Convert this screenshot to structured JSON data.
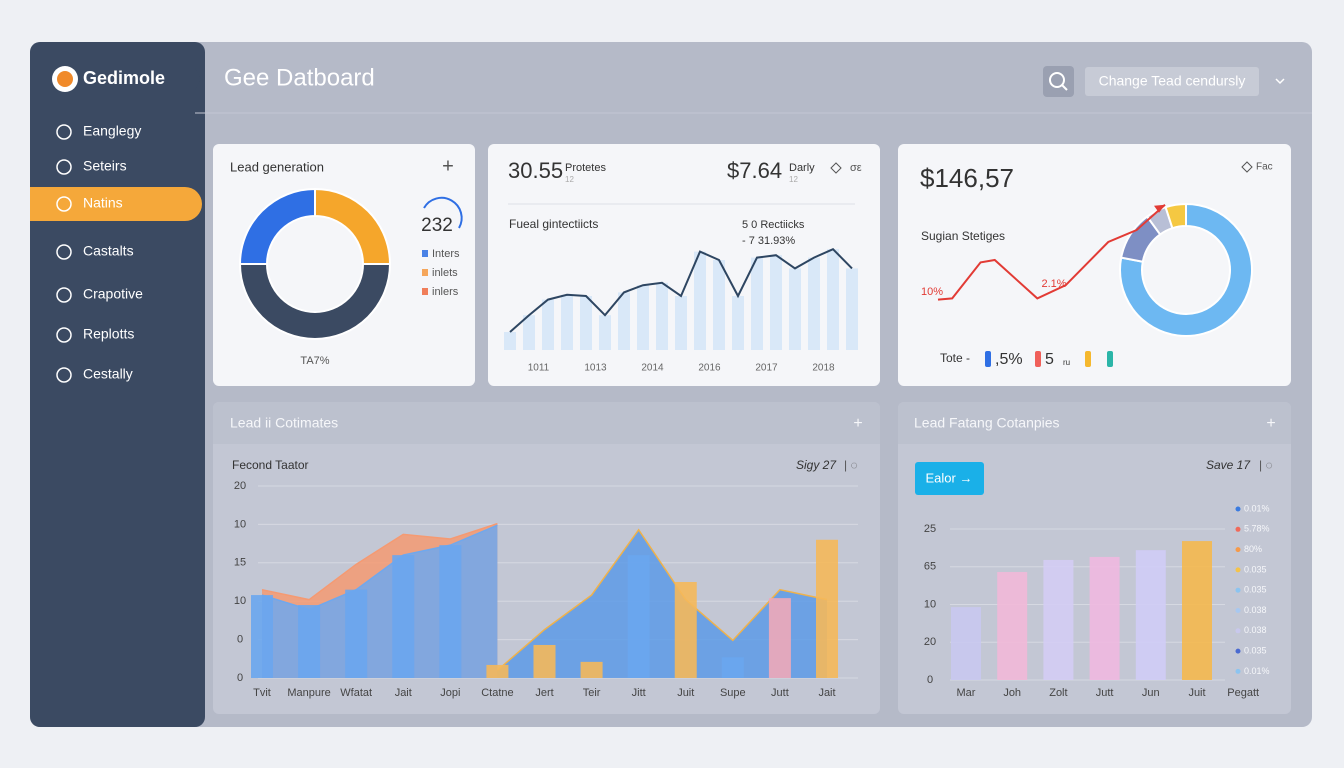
{
  "sidebar": {
    "brand": "Gedimole",
    "nav": [
      "Eanglegy",
      "Seteirs",
      "Natins",
      "Castalts",
      "Crapotive",
      "Replotts",
      "Cestally"
    ],
    "active": 2
  },
  "header": {
    "title": "Gee Datboard",
    "button": "Change Tead cendursly"
  },
  "chart_data": [
    {
      "type": "pie",
      "title": "Lead generation",
      "action": "+",
      "values": [
        25,
        25,
        50
      ],
      "colors": [
        "#2f6fe4",
        "#f5a62b",
        "#3b4a62"
      ],
      "center_label": 232,
      "legend": [
        {
          "name": "Inters",
          "color": "#4a82e6"
        },
        {
          "name": "inlets",
          "color": "#f5a65b"
        },
        {
          "name": "inlers",
          "color": "#f07e5a"
        }
      ],
      "footer": "TA7%"
    },
    {
      "type": "line",
      "kpis": [
        {
          "value": "30.55",
          "label": "Protetes",
          "note": "12"
        },
        {
          "value": "$7.64",
          "label": "Darly",
          "note": "12"
        }
      ],
      "badge": "σε",
      "subtitle": "Fueal gintectiicts",
      "annotations": [
        "5 0 Rectiicks",
        "- 7 31.93%"
      ],
      "x": [
        0,
        1,
        2,
        3,
        4,
        5,
        6,
        7,
        8,
        9,
        10,
        11,
        12,
        13,
        14,
        15,
        16,
        17,
        18
      ],
      "values": [
        15,
        29,
        42,
        46,
        45,
        29,
        48,
        54,
        56,
        45,
        82,
        75,
        45,
        77,
        79,
        68,
        77,
        84,
        68
      ],
      "color": "#2e4662",
      "bar_color": "#d9e8f8",
      "xlim": [
        0,
        18
      ],
      "xticks": [
        {
          "value": 1.5,
          "label": "1011"
        },
        {
          "value": 4.5,
          "label": "1013"
        },
        {
          "value": 7.5,
          "label": "2014"
        },
        {
          "value": 10.5,
          "label": "2016"
        },
        {
          "value": 13.5,
          "label": "2017"
        },
        {
          "value": 16.5,
          "label": "2018"
        }
      ],
      "ylim": [
        0,
        100
      ]
    },
    {
      "type": "trend-donut",
      "title": "$146,57",
      "badge": "Fac",
      "subtitle": "Sugian Stetiges",
      "x": [
        0,
        1,
        3,
        4,
        7,
        9,
        12,
        14,
        16
      ],
      "values": [
        17,
        18,
        48,
        50,
        18,
        29,
        65,
        75,
        96
      ],
      "xlim": [
        0,
        16
      ],
      "ylim": [
        0,
        100
      ],
      "color": "#e23b35",
      "annotations": [
        "10%",
        "2.1%"
      ],
      "donut": {
        "values": [
          78,
          12,
          5,
          5
        ],
        "colors": [
          "#6db8f2",
          "#7e8fc4",
          "#b8bfd6",
          "#f5c842"
        ]
      },
      "legend": {
        "label": "Tote -",
        "items": [
          {
            "color": "#2f6fe4",
            "text": ",5%"
          },
          {
            "color": "#f0605a",
            "text": "5",
            "unit": "ru"
          },
          {
            "color": "#f5b82e"
          },
          {
            "color": "#2bb5a8"
          }
        ]
      }
    },
    {
      "type": "combo",
      "title": "Lead ii Cotimates",
      "action": "+",
      "subtitle": "Fecond Taator",
      "meta": "Sigy 27",
      "categories": [
        "Tvit",
        "Manpure",
        "Wfatat",
        "Jait",
        "Jopi",
        "Ctatne",
        "Jert",
        "Teir",
        "Jitt",
        "Juit",
        "Supe",
        "Jutt",
        "Jait"
      ],
      "ylim": [
        0,
        25
      ],
      "yticks": [
        {
          "value": 25,
          "label": "20"
        },
        {
          "value": 20,
          "label": "10"
        },
        15,
        10,
        {
          "value": 5,
          "label": "0"
        },
        0
      ],
      "grid": true,
      "areas": [
        {
          "color": "#f59a72",
          "values": [
            11.5,
            10.2,
            14.8,
            18.7,
            18.1,
            20.1,
            null,
            null,
            null,
            null,
            null,
            null,
            null
          ]
        },
        {
          "color": "#6fa8ee",
          "values": [
            10.8,
            8.9,
            11.5,
            16,
            17.3,
            19.9,
            null,
            null,
            null,
            null,
            null,
            null,
            null
          ]
        },
        {
          "color": "#5d9ae6",
          "line_color": "#f0b24a",
          "values": [
            null,
            null,
            null,
            null,
            null,
            1,
            6.3,
            10.8,
            19.3,
            10.2,
            4.9,
            11.5,
            10.2
          ]
        }
      ],
      "bars": {
        "values": [
          10.8,
          9.5,
          11.5,
          16,
          17.3,
          1.7,
          4.3,
          2.1,
          16,
          12.5,
          2.7,
          10.4,
          18
        ],
        "colors": [
          "#6aa6ee",
          "#6aa6ee",
          "#6aa6ee",
          "#6aa6ee",
          "#6aa6ee",
          "#f5b85a",
          "#f5b85a",
          "#f5b85a",
          "#6aa6ee",
          "#f5b85a",
          "#6aa6ee",
          "#f0a8b8",
          "#f5b85a"
        ]
      }
    },
    {
      "type": "bar",
      "title": "Lead Fatang Cotanpies",
      "action": "+",
      "button": "Ealor →",
      "meta": "Save 17",
      "categories": [
        "Mar",
        "Joh",
        "Zolt",
        "Jutt",
        "Jun",
        "Juit",
        "Pegatt"
      ],
      "values": [
        19.3,
        28.6,
        31.8,
        32.6,
        34.4,
        36.8,
        null
      ],
      "colors": [
        "#c9c8f0",
        "#f2b8d8",
        "#d4ccf4",
        "#efb8e0",
        "#d0ccf6",
        "#f5b84e",
        null
      ],
      "ylim": [
        0,
        40
      ],
      "yticks": [
        {
          "value": 40,
          "label": "25"
        },
        {
          "value": 30,
          "label": "65"
        },
        {
          "value": 20,
          "label": "10"
        },
        {
          "value": 10,
          "label": "20"
        },
        0
      ],
      "grid": true,
      "legend": [
        {
          "text": "0.01%",
          "color": "#3a7be0"
        },
        {
          "text": "5.78%",
          "color": "#f06a5a"
        },
        {
          "text": "80%",
          "color": "#f59a4a"
        },
        {
          "text": "0.035",
          "color": "#f5c34a"
        },
        {
          "text": "0.035",
          "color": "#8cc4f0"
        },
        {
          "text": "0.038",
          "color": "#a8c8f0"
        },
        {
          "text": "0.038",
          "color": "#c8c8ec"
        },
        {
          "text": "0.035",
          "color": "#4a6ad0"
        },
        {
          "text": "0.01%",
          "color": "#8cc4f0"
        }
      ]
    }
  ]
}
